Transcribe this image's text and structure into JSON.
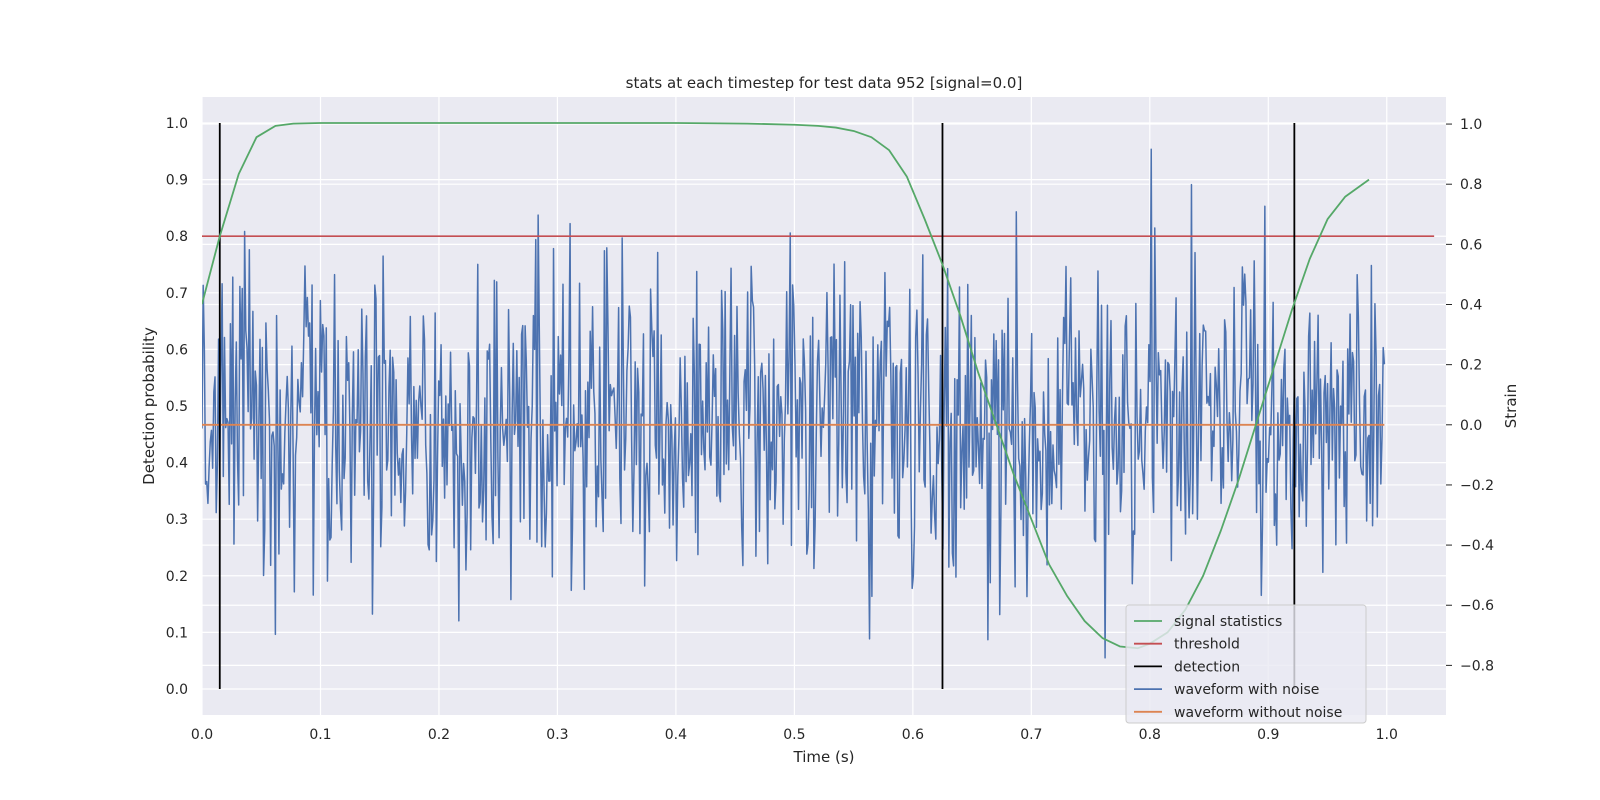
{
  "chart_data": {
    "type": "line",
    "title": "stats at each timestep for test data 952 [signal=0.0]",
    "xlabel": "Time (s)",
    "ylabel_left": "Detection probability",
    "ylabel_right": "Strain",
    "xlim": [
      0.0,
      1.05
    ],
    "ylim_left": [
      -0.046,
      1.046
    ],
    "ylim_right": [
      -0.965,
      1.09
    ],
    "x_ticks": [
      "0.0",
      "0.1",
      "0.2",
      "0.3",
      "0.4",
      "0.5",
      "0.6",
      "0.7",
      "0.8",
      "0.9",
      "1.0"
    ],
    "left_ticks": [
      "0.0",
      "0.1",
      "0.2",
      "0.3",
      "0.4",
      "0.5",
      "0.6",
      "0.7",
      "0.8",
      "0.9",
      "1.0"
    ],
    "right_ticks": [
      "−0.8",
      "−0.6",
      "−0.4",
      "−0.2",
      "0.0",
      "0.2",
      "0.4",
      "0.6",
      "0.8",
      "1.0"
    ],
    "grid": true,
    "legend_position": "lower-right",
    "colors": {
      "signal_statistics": "#55a868",
      "threshold": "#c44e52",
      "detection": "#000000",
      "waveform_with_noise": "#4c72b0",
      "waveform_without_noise": "#dd8452",
      "plot_background": "#eaeaf2",
      "grid": "#ffffff"
    },
    "series": [
      {
        "name": "signal statistics",
        "axis": "left",
        "x": [
          0.0,
          0.015,
          0.031,
          0.046,
          0.062,
          0.077,
          0.1,
          0.2,
          0.3,
          0.4,
          0.46,
          0.5,
          0.52,
          0.535,
          0.55,
          0.565,
          0.58,
          0.595,
          0.61,
          0.625,
          0.64,
          0.655,
          0.67,
          0.685,
          0.7,
          0.715,
          0.73,
          0.745,
          0.76,
          0.775,
          0.79,
          0.8,
          0.815,
          0.83,
          0.845,
          0.86,
          0.875,
          0.89,
          0.905,
          0.92,
          0.935,
          0.95,
          0.965,
          0.985
        ],
        "y": [
          0.68,
          0.8,
          0.91,
          0.975,
          0.995,
          0.999,
          1.0,
          1.0,
          1.0,
          1.0,
          0.999,
          0.997,
          0.995,
          0.992,
          0.986,
          0.975,
          0.952,
          0.905,
          0.83,
          0.75,
          0.66,
          0.56,
          0.47,
          0.38,
          0.3,
          0.22,
          0.165,
          0.12,
          0.09,
          0.075,
          0.072,
          0.08,
          0.1,
          0.14,
          0.2,
          0.28,
          0.37,
          0.47,
          0.57,
          0.67,
          0.76,
          0.83,
          0.87,
          0.9
        ]
      },
      {
        "name": "threshold",
        "axis": "left",
        "x": [
          0.0,
          1.04
        ],
        "y": [
          0.8,
          0.8
        ]
      },
      {
        "name": "detection",
        "axis": "left",
        "segments": [
          {
            "x": 0.015,
            "y0": 0.0,
            "y1": 1.0
          },
          {
            "x": 0.625,
            "y0": 0.0,
            "y1": 1.0
          },
          {
            "x": 0.922,
            "y0": 0.0,
            "y1": 1.0
          }
        ]
      },
      {
        "name": "waveform with noise",
        "axis": "right",
        "x_start": 0.0,
        "x_end": 0.998,
        "n_points": 1000,
        "std": 0.26,
        "min": -0.83,
        "max": 1.0,
        "seed": 952
      },
      {
        "name": "waveform without noise",
        "axis": "right",
        "x": [
          0.0,
          0.998
        ],
        "y": [
          0.0,
          0.0
        ]
      }
    ]
  }
}
